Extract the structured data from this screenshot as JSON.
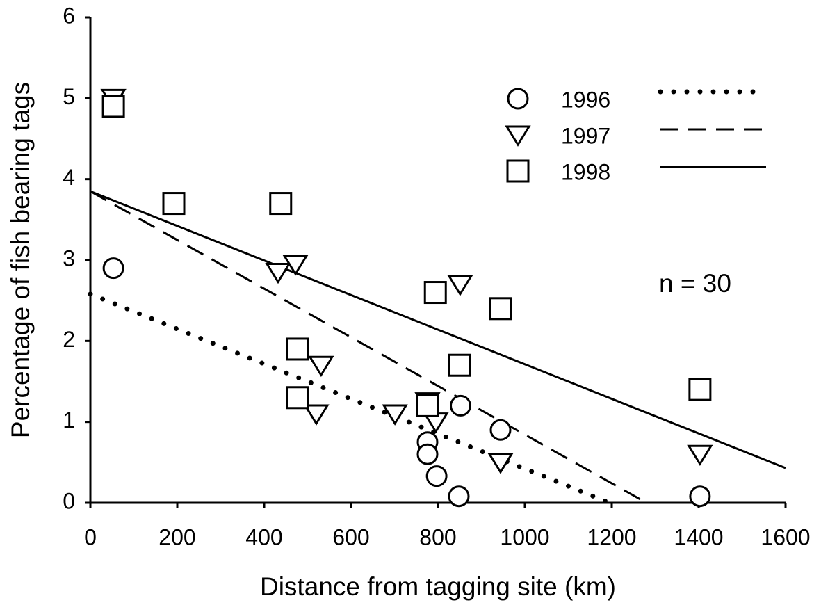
{
  "chart_data": {
    "type": "scatter",
    "x_label": "Distance from tagging site (km)",
    "y_label": "Percentage of fish bearing tags",
    "annotation": "n = 30",
    "xlim": [
      0,
      1600
    ],
    "xticks": [
      0,
      200,
      400,
      600,
      800,
      1000,
      1200,
      1400,
      1600
    ],
    "ylim": [
      0,
      6
    ],
    "yticks": [
      0,
      1,
      2,
      3,
      4,
      5,
      6
    ],
    "legend": "upper right",
    "series": [
      {
        "name": "1996",
        "color": "#000000",
        "marker": "circle",
        "linestyle": "dotted",
        "x": [
          53,
          776,
          776,
          797,
          848,
          852,
          944,
          1403
        ],
        "values": [
          2.9,
          0.75,
          0.6,
          0.33,
          0.08,
          1.2,
          0.9,
          0.08
        ],
        "trend_x": [
          0,
          1195
        ],
        "trend_y": [
          2.58,
          0
        ]
      },
      {
        "name": "1997",
        "color": "#000000",
        "marker": "triangle",
        "linestyle": "dashed",
        "x": [
          53,
          432,
          472,
          531,
          520,
          701,
          776,
          795,
          851,
          944,
          1403
        ],
        "values": [
          5.0,
          2.85,
          2.95,
          1.7,
          1.1,
          1.1,
          1.25,
          1.0,
          2.7,
          0.5,
          0.6
        ],
        "trend_x": [
          0,
          1280
        ],
        "trend_y": [
          3.85,
          0
        ]
      },
      {
        "name": "1998",
        "color": "#000000",
        "marker": "square",
        "linestyle": "solid",
        "x": [
          53,
          192,
          438,
          477,
          477,
          776,
          794,
          850,
          944,
          1403
        ],
        "values": [
          4.9,
          3.7,
          3.7,
          1.9,
          1.3,
          1.2,
          2.6,
          1.7,
          2.4,
          1.4
        ],
        "trend_x": [
          0,
          1600
        ],
        "trend_y": [
          3.85,
          0.43
        ]
      }
    ]
  }
}
